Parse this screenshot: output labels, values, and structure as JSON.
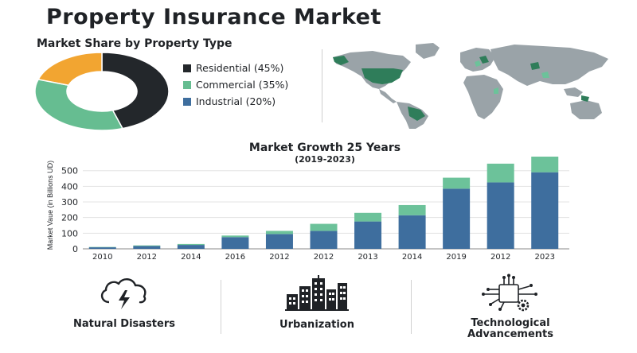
{
  "page": {
    "title": "Property Insurance Market"
  },
  "chart_data": [
    {
      "type": "pie",
      "style": "donut",
      "title": "Market Share by Property Type",
      "slices": [
        {
          "label": "Residential (45%)",
          "value": 45,
          "color": "#23272b"
        },
        {
          "label": "Commercial (35%)",
          "value": 35,
          "color": "#66bd91"
        },
        {
          "label": "Industrial (20%)",
          "value": 20,
          "color": "#f2a531"
        }
      ],
      "legend_entries": [
        {
          "label": "Residential (45%)",
          "color": "#23272b"
        },
        {
          "label": "Commercial (35%)",
          "color": "#66bd91"
        },
        {
          "label": "Industrial (20%)",
          "color": "#3e6e9e"
        }
      ],
      "legend_position": "right"
    },
    {
      "type": "bar",
      "stacked": true,
      "title": "Market Growth 25 Years",
      "subtitle": "(2019-2023)",
      "ylabel": "Market Vaue (in Billions UD)",
      "xlabel": "",
      "categories": [
        "2010",
        "2012",
        "2014",
        "2016",
        "2012",
        "2012",
        "2013",
        "2014",
        "2019",
        "2012",
        "2023"
      ],
      "series": [
        {
          "values": [
            10,
            18,
            25,
            75,
            95,
            115,
            175,
            215,
            385,
            425,
            490
          ],
          "color": "#3e6e9e"
        },
        {
          "values": [
            2,
            4,
            6,
            10,
            20,
            45,
            55,
            65,
            70,
            120,
            100
          ],
          "color": "#6cc29a"
        }
      ],
      "yticks": [
        0,
        100,
        200,
        300,
        400,
        500
      ],
      "ylim": [
        0,
        590
      ],
      "grid": true
    }
  ],
  "factors": [
    {
      "label": [
        "Natural Disasters"
      ],
      "icon": "storm-cloud-lightning-icon"
    },
    {
      "label": [
        "Urbanization"
      ],
      "icon": "city-buildings-icon"
    },
    {
      "label": [
        "Technological",
        "Advancements"
      ],
      "icon": "circuit-chip-gear-icon"
    }
  ],
  "map": {
    "icon": "world-map-icon",
    "base_color": "#9aa3a8",
    "highlight_color": "#2f7d5a",
    "accent_color": "#6cc29a"
  }
}
